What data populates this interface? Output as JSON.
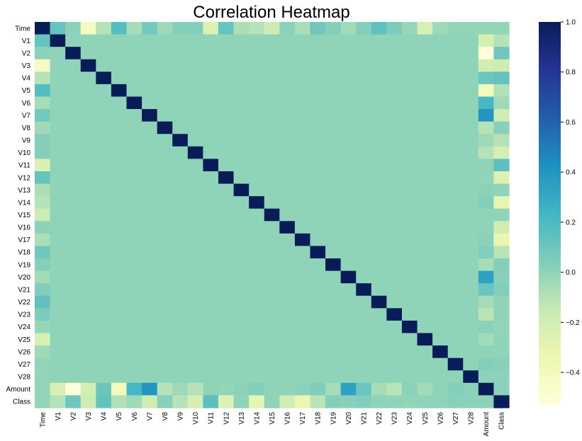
{
  "chart_data": {
    "type": "heatmap",
    "title": "Correlation Heatmap",
    "variables": [
      "Time",
      "V1",
      "V2",
      "V3",
      "V4",
      "V5",
      "V6",
      "V7",
      "V8",
      "V9",
      "V10",
      "V11",
      "V12",
      "V13",
      "V14",
      "V15",
      "V16",
      "V17",
      "V18",
      "V19",
      "V20",
      "V21",
      "V22",
      "V23",
      "V24",
      "V25",
      "V26",
      "V27",
      "V28",
      "Amount",
      "Class"
    ],
    "time_row": [
      1,
      0.12,
      0.01,
      -0.42,
      -0.1,
      0.17,
      -0.06,
      0.08,
      -0.04,
      0.03,
      0.03,
      -0.25,
      0.12,
      -0.07,
      -0.1,
      -0.18,
      0.01,
      -0.07,
      0.09,
      0.03,
      -0.05,
      0.04,
      0.14,
      0.05,
      -0.02,
      -0.23,
      -0.04,
      -0.01,
      -0.01,
      -0.01,
      -0.01
    ],
    "amount_row": [
      -0.01,
      -0.23,
      -0.53,
      -0.21,
      0.1,
      -0.39,
      0.22,
      0.4,
      -0.1,
      -0.04,
      -0.1,
      0.0,
      -0.01,
      0.01,
      0.03,
      -0.0,
      -0.0,
      0.01,
      0.04,
      -0.06,
      0.34,
      0.11,
      -0.06,
      -0.11,
      0.01,
      -0.05,
      -0.0,
      0.03,
      0.01,
      1,
      0.01
    ],
    "class_row": [
      -0.01,
      -0.1,
      0.09,
      -0.19,
      0.13,
      -0.09,
      -0.04,
      -0.19,
      0.02,
      -0.1,
      -0.22,
      0.15,
      -0.26,
      -0.0,
      -0.3,
      -0.0,
      -0.2,
      -0.33,
      -0.11,
      0.03,
      0.02,
      0.04,
      0.0,
      -0.0,
      -0.01,
      0.0,
      0.0,
      0.02,
      0.01,
      0.01,
      1
    ],
    "colorbar": {
      "min": -0.53,
      "max": 1.0,
      "ticks": [
        "1.0",
        "0.8",
        "0.6",
        "0.4",
        "0.2",
        "0.0",
        "−0.2",
        "−0.4"
      ],
      "tick_values": [
        1.0,
        0.8,
        0.6,
        0.4,
        0.2,
        0.0,
        -0.2,
        -0.4
      ]
    },
    "colormap": "YlGnBu",
    "colormap_stops": [
      "#ffffd9",
      "#edf8b1",
      "#c7e9b4",
      "#7fcdbb",
      "#41b6c4",
      "#1d91c0",
      "#225ea8",
      "#253494",
      "#081d58"
    ]
  }
}
